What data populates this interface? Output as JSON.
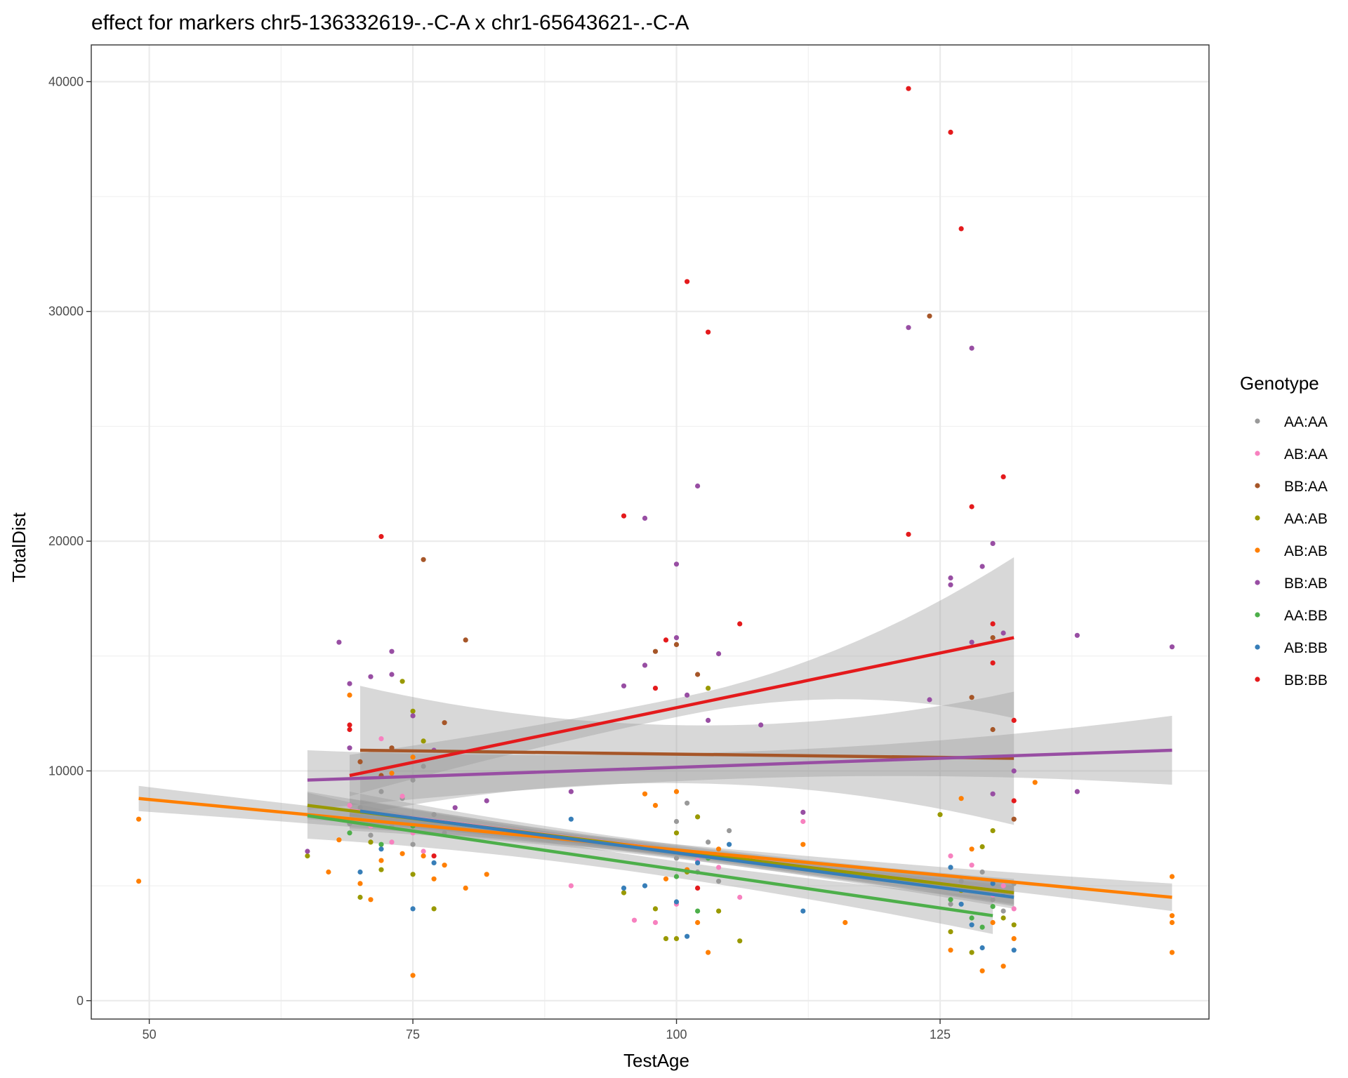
{
  "chart_data": {
    "type": "scatter",
    "title": "effect for markers chr5-136332619-.-C-A x chr1-65643621-.-C-A",
    "xlabel": "TestAge",
    "ylabel": "TotalDist",
    "xlim": [
      44.5,
      150.5
    ],
    "ylim": [
      -800,
      41600
    ],
    "x_ticks": [
      50,
      75,
      100,
      125
    ],
    "x_tick_labels": [
      "50",
      "75",
      "100",
      "125"
    ],
    "y_ticks": [
      0,
      10000,
      20000,
      30000,
      40000
    ],
    "y_tick_labels": [
      "0",
      "10000",
      "20000",
      "30000",
      "40000"
    ],
    "grid": true,
    "legend": {
      "title": "Genotype",
      "position": "right"
    },
    "series": [
      {
        "name": "AA:AA",
        "color": "#999999",
        "trend": {
          "x": [
            69,
            132
          ],
          "y": [
            8100,
            4650
          ],
          "ci": [
            700,
            500
          ]
        },
        "points": [
          [
            69,
            7700
          ],
          [
            70,
            8400
          ],
          [
            71,
            7200
          ],
          [
            72,
            9100
          ],
          [
            73,
            7600
          ],
          [
            74,
            8800
          ],
          [
            75,
            9600
          ],
          [
            75,
            6800
          ],
          [
            76,
            10200
          ],
          [
            77,
            8100
          ],
          [
            78,
            7300
          ],
          [
            100,
            6200
          ],
          [
            100,
            7800
          ],
          [
            101,
            8600
          ],
          [
            102,
            5600
          ],
          [
            103,
            6900
          ],
          [
            104,
            5200
          ],
          [
            105,
            7400
          ],
          [
            126,
            4200
          ],
          [
            127,
            5200
          ],
          [
            128,
            4800
          ],
          [
            129,
            5600
          ],
          [
            130,
            4400
          ],
          [
            131,
            3900
          ],
          [
            132,
            5100
          ]
        ]
      },
      {
        "name": "AB:AA",
        "color": "#f781bf",
        "trend": {
          "x": [
            69,
            132
          ],
          "y": [
            8300,
            4700
          ],
          "ci": [
            800,
            600
          ]
        },
        "points": [
          [
            69,
            8500
          ],
          [
            71,
            7600
          ],
          [
            72,
            11400
          ],
          [
            73,
            6900
          ],
          [
            74,
            8900
          ],
          [
            75,
            7300
          ],
          [
            76,
            6500
          ],
          [
            90,
            5000
          ],
          [
            96,
            3500
          ],
          [
            98,
            3400
          ],
          [
            100,
            4200
          ],
          [
            102,
            6100
          ],
          [
            104,
            5800
          ],
          [
            106,
            4500
          ],
          [
            112,
            7800
          ],
          [
            126,
            6300
          ],
          [
            128,
            5900
          ],
          [
            130,
            4600
          ],
          [
            131,
            5000
          ],
          [
            132,
            4000
          ]
        ]
      },
      {
        "name": "BB:AA",
        "color": "#a65628",
        "trend": {
          "x": [
            70,
            132
          ],
          "y": [
            10900,
            10550
          ],
          "ci": [
            2800,
            2900
          ]
        },
        "points": [
          [
            70,
            10400
          ],
          [
            72,
            9800
          ],
          [
            73,
            11000
          ],
          [
            76,
            19200
          ],
          [
            78,
            12100
          ],
          [
            80,
            15700
          ],
          [
            98,
            15200
          ],
          [
            100,
            15500
          ],
          [
            102,
            14200
          ],
          [
            124,
            29800
          ],
          [
            128,
            13200
          ],
          [
            130,
            15800
          ],
          [
            130,
            11800
          ],
          [
            131,
            10600
          ],
          [
            132,
            7900
          ]
        ]
      },
      {
        "name": "AA:AB",
        "color": "#999900",
        "trend": {
          "x": [
            65,
            132
          ],
          "y": [
            8500,
            4700
          ],
          "ci": [
            600,
            500
          ]
        },
        "points": [
          [
            65,
            6300
          ],
          [
            70,
            4500
          ],
          [
            71,
            6900
          ],
          [
            72,
            5700
          ],
          [
            74,
            13900
          ],
          [
            75,
            12600
          ],
          [
            75,
            5500
          ],
          [
            76,
            11300
          ],
          [
            77,
            4000
          ],
          [
            95,
            4700
          ],
          [
            98,
            4000
          ],
          [
            99,
            2700
          ],
          [
            100,
            2700
          ],
          [
            100,
            7300
          ],
          [
            101,
            5600
          ],
          [
            102,
            8000
          ],
          [
            103,
            13600
          ],
          [
            104,
            3900
          ],
          [
            106,
            2600
          ],
          [
            125,
            8100
          ],
          [
            126,
            3000
          ],
          [
            127,
            4800
          ],
          [
            128,
            2100
          ],
          [
            129,
            6700
          ],
          [
            130,
            7400
          ],
          [
            131,
            3600
          ],
          [
            132,
            3300
          ]
        ]
      },
      {
        "name": "AB:AB",
        "color": "#ff7f00",
        "trend": {
          "x": [
            49,
            147
          ],
          "y": [
            8800,
            4500
          ],
          "ci": [
            550,
            600
          ]
        },
        "points": [
          [
            49,
            7900
          ],
          [
            49,
            5200
          ],
          [
            67,
            5600
          ],
          [
            68,
            7000
          ],
          [
            69,
            13300
          ],
          [
            70,
            5100
          ],
          [
            71,
            4400
          ],
          [
            72,
            6100
          ],
          [
            73,
            9900
          ],
          [
            74,
            6400
          ],
          [
            75,
            1100
          ],
          [
            75,
            10600
          ],
          [
            76,
            6300
          ],
          [
            77,
            5300
          ],
          [
            78,
            5900
          ],
          [
            80,
            4900
          ],
          [
            82,
            5500
          ],
          [
            97,
            9000
          ],
          [
            98,
            8500
          ],
          [
            99,
            5300
          ],
          [
            100,
            9100
          ],
          [
            101,
            5700
          ],
          [
            102,
            3400
          ],
          [
            103,
            2100
          ],
          [
            104,
            6600
          ],
          [
            112,
            6800
          ],
          [
            116,
            3400
          ],
          [
            126,
            2200
          ],
          [
            127,
            8800
          ],
          [
            128,
            6600
          ],
          [
            129,
            1300
          ],
          [
            130,
            3400
          ],
          [
            131,
            1500
          ],
          [
            132,
            2700
          ],
          [
            134,
            9500
          ],
          [
            147,
            5400
          ],
          [
            147,
            3700
          ],
          [
            147,
            2100
          ],
          [
            147,
            3400
          ]
        ]
      },
      {
        "name": "BB:AB",
        "color": "#984ea3",
        "trend": {
          "x": [
            65,
            147
          ],
          "y": [
            9600,
            10900
          ],
          "ci": [
            1300,
            1500
          ]
        },
        "points": [
          [
            65,
            6500
          ],
          [
            68,
            15600
          ],
          [
            69,
            13800
          ],
          [
            69,
            11000
          ],
          [
            71,
            14100
          ],
          [
            73,
            15200
          ],
          [
            73,
            14200
          ],
          [
            75,
            12400
          ],
          [
            77,
            10900
          ],
          [
            79,
            8400
          ],
          [
            82,
            8700
          ],
          [
            90,
            9100
          ],
          [
            95,
            13700
          ],
          [
            97,
            14600
          ],
          [
            97,
            21000
          ],
          [
            100,
            19000
          ],
          [
            100,
            15800
          ],
          [
            101,
            13300
          ],
          [
            102,
            22400
          ],
          [
            103,
            12200
          ],
          [
            104,
            15100
          ],
          [
            108,
            12000
          ],
          [
            112,
            8200
          ],
          [
            122,
            29300
          ],
          [
            124,
            13100
          ],
          [
            126,
            18400
          ],
          [
            126,
            18100
          ],
          [
            128,
            28400
          ],
          [
            128,
            15600
          ],
          [
            129,
            18900
          ],
          [
            130,
            19900
          ],
          [
            130,
            9000
          ],
          [
            131,
            16000
          ],
          [
            132,
            10000
          ],
          [
            138,
            9100
          ],
          [
            138,
            15900
          ],
          [
            147,
            15400
          ]
        ]
      },
      {
        "name": "AA:BB",
        "color": "#4daf4a",
        "trend": {
          "x": [
            65,
            130
          ],
          "y": [
            8050,
            3700
          ],
          "ci": [
            1000,
            800
          ]
        },
        "points": [
          [
            69,
            7300
          ],
          [
            72,
            6800
          ],
          [
            75,
            7600
          ],
          [
            100,
            5400
          ],
          [
            102,
            3900
          ],
          [
            103,
            6200
          ],
          [
            126,
            4400
          ],
          [
            128,
            3600
          ],
          [
            129,
            3200
          ],
          [
            130,
            4100
          ]
        ]
      },
      {
        "name": "AB:BB",
        "color": "#377eb8",
        "trend": {
          "x": [
            70,
            132
          ],
          "y": [
            8250,
            4500
          ],
          "ci": [
            500,
            500
          ]
        },
        "points": [
          [
            70,
            5600
          ],
          [
            72,
            6600
          ],
          [
            75,
            4000
          ],
          [
            77,
            6000
          ],
          [
            90,
            7900
          ],
          [
            95,
            4900
          ],
          [
            97,
            5000
          ],
          [
            100,
            4300
          ],
          [
            101,
            2800
          ],
          [
            102,
            6000
          ],
          [
            105,
            6800
          ],
          [
            112,
            3900
          ],
          [
            126,
            5800
          ],
          [
            127,
            4200
          ],
          [
            128,
            3300
          ],
          [
            129,
            2300
          ],
          [
            130,
            5100
          ],
          [
            131,
            4700
          ],
          [
            132,
            2200
          ]
        ]
      },
      {
        "name": "BB:BB",
        "color": "#e41a1c",
        "trend": {
          "x": [
            69,
            132
          ],
          "y": [
            9800,
            15800
          ],
          "ci": [
            900,
            3500
          ]
        },
        "points": [
          [
            69,
            12000
          ],
          [
            69,
            11800
          ],
          [
            72,
            20200
          ],
          [
            77,
            6300
          ],
          [
            95,
            21100
          ],
          [
            98,
            13600
          ],
          [
            99,
            15700
          ],
          [
            101,
            31300
          ],
          [
            102,
            4900
          ],
          [
            103,
            29100
          ],
          [
            106,
            16400
          ],
          [
            122,
            39700
          ],
          [
            122,
            20300
          ],
          [
            126,
            37800
          ],
          [
            127,
            33600
          ],
          [
            128,
            21500
          ],
          [
            130,
            16400
          ],
          [
            130,
            14700
          ],
          [
            131,
            22800
          ],
          [
            132,
            12200
          ],
          [
            132,
            8700
          ]
        ]
      }
    ]
  }
}
